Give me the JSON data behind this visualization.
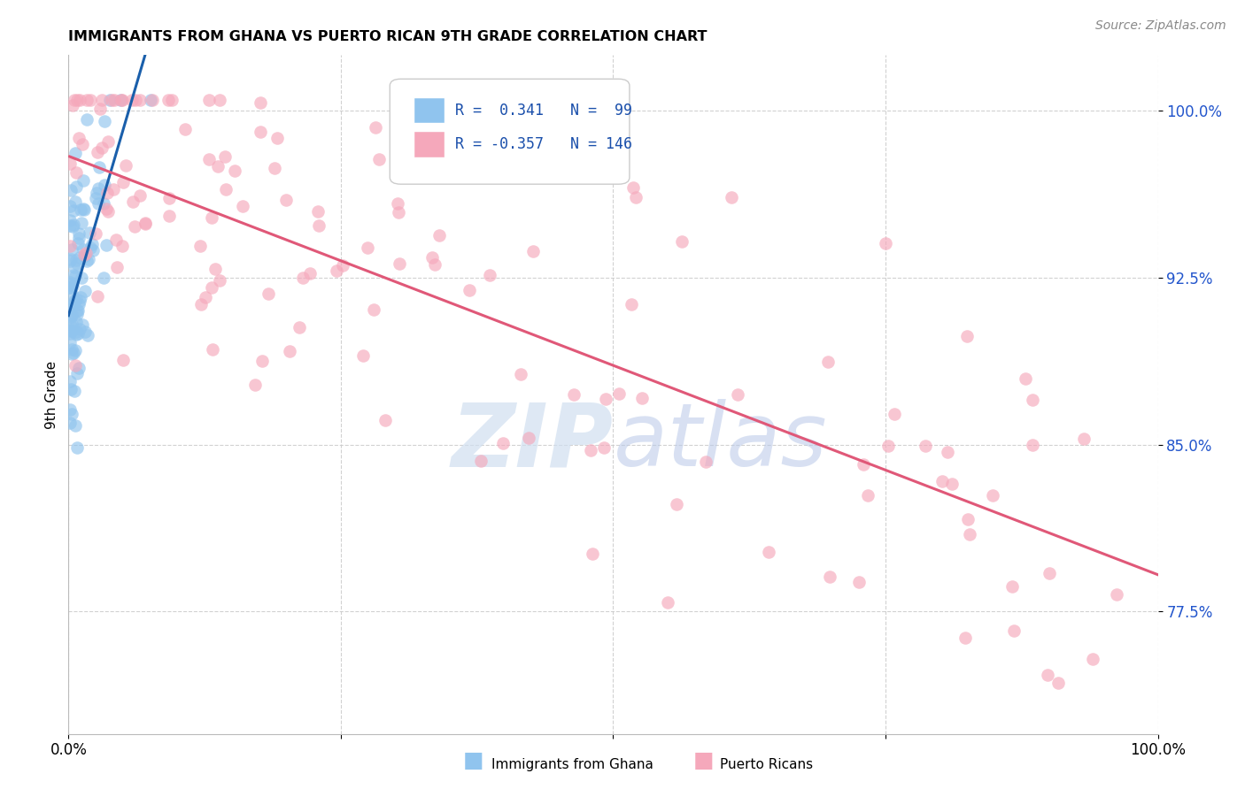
{
  "title": "IMMIGRANTS FROM GHANA VS PUERTO RICAN 9TH GRADE CORRELATION CHART",
  "source": "Source: ZipAtlas.com",
  "ylabel": "9th Grade",
  "xlim": [
    0.0,
    1.0
  ],
  "ylim": [
    0.72,
    1.025
  ],
  "yticks": [
    0.775,
    0.85,
    0.925,
    1.0
  ],
  "ytick_labels": [
    "77.5%",
    "85.0%",
    "92.5%",
    "100.0%"
  ],
  "xticks": [
    0.0,
    0.25,
    0.5,
    0.75,
    1.0
  ],
  "xtick_labels": [
    "0.0%",
    "",
    "",
    "",
    "100.0%"
  ],
  "ghana_R": 0.341,
  "ghana_N": 99,
  "pr_R": -0.357,
  "pr_N": 146,
  "ghana_color": "#90C4EE",
  "pr_color": "#F5A8BB",
  "ghana_line_color": "#1A5FAB",
  "pr_line_color": "#E05878",
  "legend_text_color": "#1A4FAB",
  "watermark_color": "#D0DFF0"
}
